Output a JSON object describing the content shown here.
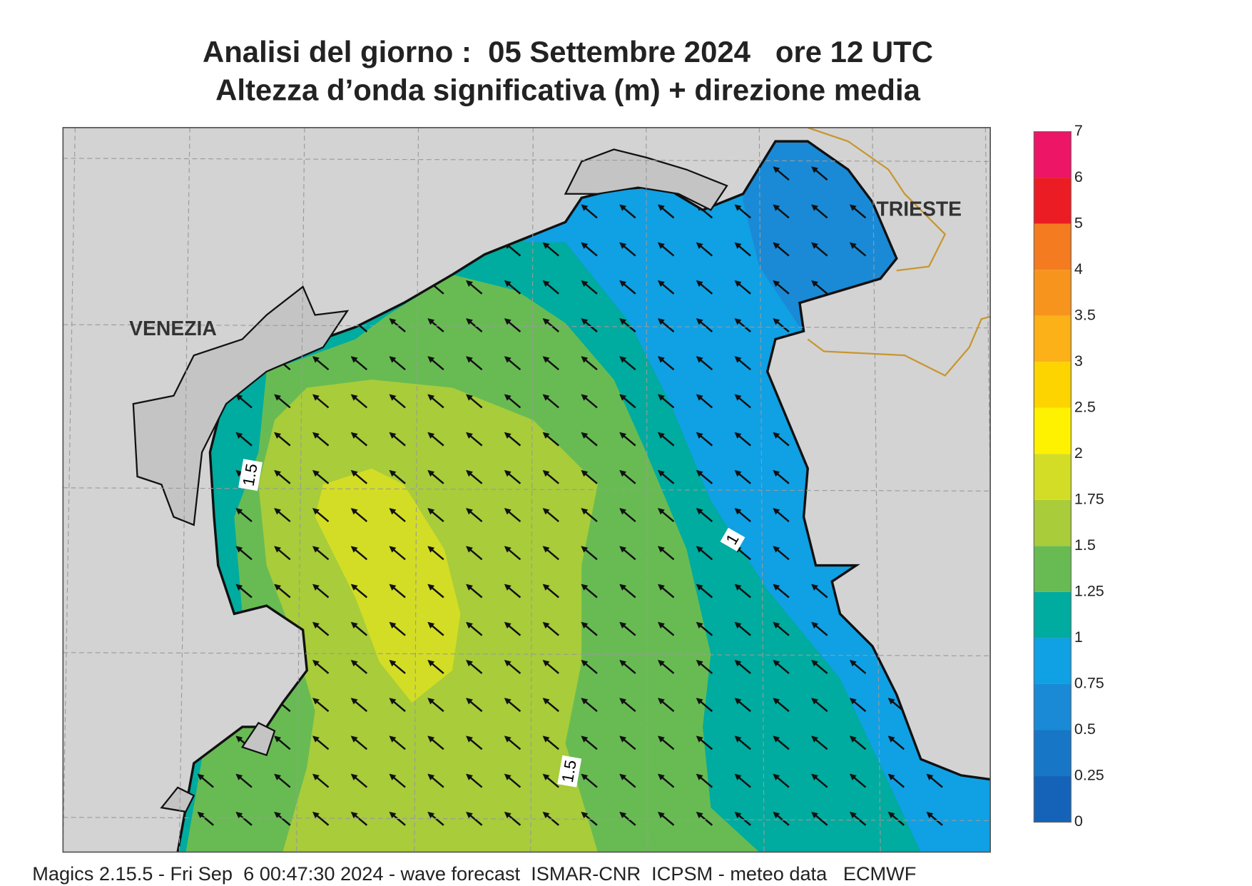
{
  "header": {
    "title": "Analisi del giorno :  05 Settembre 2024   ore 12 UTC",
    "subtitle": "Altezza d’onda significativa (m) + direzione media"
  },
  "map": {
    "place_labels": [
      "VENEZIA",
      "TRIESTE"
    ],
    "contour_labels": [
      "1.5",
      "1",
      "1.5"
    ]
  },
  "colorbar": {
    "levels": [
      0,
      0.25,
      0.5,
      0.75,
      1,
      1.25,
      1.5,
      1.75,
      2,
      2.5,
      3,
      3.5,
      4,
      5,
      6,
      7
    ],
    "colors": [
      "#1463b8",
      "#1876c6",
      "#1a8ad6",
      "#10a0e4",
      "#00ab9f",
      "#68bb53",
      "#a8cc3a",
      "#d3dd25",
      "#fff200",
      "#fdd300",
      "#fbb117",
      "#f7941d",
      "#f47b20",
      "#ec1c24",
      "#ec1566"
    ]
  },
  "footer": "Magics 2.15.5 - Fri Sep  6 00:47:30 2024 - wave forecast  ISMAR-CNR  ICPSM - meteo data   ECMWF"
}
